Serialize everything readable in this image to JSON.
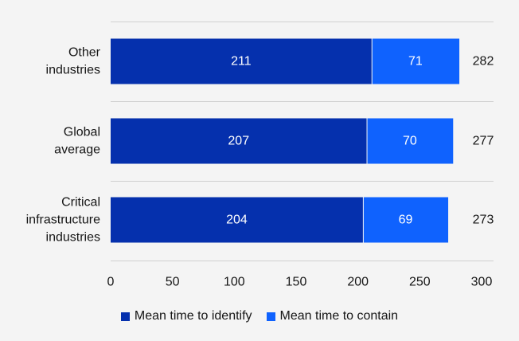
{
  "chart_data": {
    "type": "bar",
    "orientation": "horizontal",
    "stacked": true,
    "categories": [
      [
        "Other",
        "industries"
      ],
      [
        "Global",
        "average"
      ],
      [
        "Critical",
        "infrastructure",
        "industries"
      ]
    ],
    "series": [
      {
        "name": "Mean time to identify",
        "values": [
          211,
          207,
          204
        ],
        "color": "#0530ad"
      },
      {
        "name": "Mean time to contain",
        "values": [
          71,
          70,
          69
        ],
        "color": "#0f62fe"
      }
    ],
    "totals": [
      282,
      277,
      273
    ],
    "xlim": [
      0,
      300
    ],
    "xticks": [
      0,
      50,
      100,
      150,
      200,
      250,
      300
    ],
    "grid": "horizontal separators",
    "legend_position": "bottom"
  }
}
